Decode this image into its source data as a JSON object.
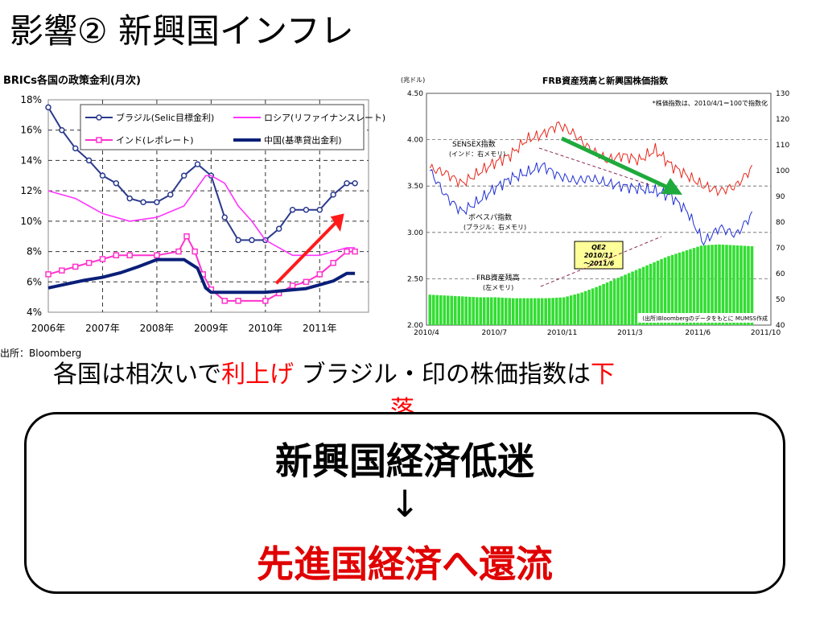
{
  "slide": {
    "title": "影響② 新興国インフレ",
    "caption_part1": "各国は相次いで",
    "caption_red1": "利上げ",
    "caption_part2": " ブラジル・印の株価指数は",
    "caption_red2a": "下",
    "caption_red2b": "落",
    "box_line1": "新興国経済低迷",
    "box_line2": "↓",
    "box_line3": "先進国経済へ還流",
    "source_left": "出所：Bloomberg"
  },
  "chart_data": [
    {
      "type": "line",
      "title": "BRICs各国の政策金利(月次)",
      "x_ticks": [
        "2006年",
        "2007年",
        "2008年",
        "2009年",
        "2010年",
        "2011年"
      ],
      "y_ticks": [
        "18%",
        "16%",
        "14%",
        "12%",
        "10%",
        "8%",
        "6%",
        "4%"
      ],
      "xlim": [
        2006,
        2011.9
      ],
      "ylim": [
        4,
        18
      ],
      "grid": true,
      "legend_position": "top",
      "colors": {
        "brazil": "#2b3a8c",
        "russia": "#ff33ff",
        "india": "#ff33cc",
        "china": "#0a1f78",
        "arrow": "#ff1a1a"
      },
      "series": [
        {
          "name": "ブラジル(Selic目標金利)",
          "key": "brazil",
          "marker": "circle",
          "x": [
            2006.0,
            2006.25,
            2006.5,
            2006.75,
            2007.0,
            2007.25,
            2007.5,
            2007.75,
            2008.0,
            2008.25,
            2008.5,
            2008.75,
            2009.0,
            2009.25,
            2009.5,
            2009.75,
            2010.0,
            2010.25,
            2010.5,
            2010.75,
            2011.0,
            2011.25,
            2011.5,
            2011.65
          ],
          "y": [
            17.5,
            16.0,
            14.8,
            14.0,
            13.0,
            12.5,
            11.5,
            11.25,
            11.25,
            11.75,
            13.0,
            13.75,
            13.0,
            10.25,
            8.75,
            8.75,
            8.75,
            9.5,
            10.75,
            10.75,
            10.75,
            11.75,
            12.5,
            12.5
          ]
        },
        {
          "name": "ロシア(リファイナンスレート)",
          "key": "russia",
          "marker": "none",
          "x": [
            2006.0,
            2006.5,
            2007.0,
            2007.5,
            2008.0,
            2008.5,
            2008.9,
            2009.0,
            2009.25,
            2009.5,
            2009.75,
            2010.0,
            2010.5,
            2011.0,
            2011.5,
            2011.65
          ],
          "y": [
            12.0,
            11.5,
            10.5,
            10.0,
            10.25,
            11.0,
            13.0,
            13.0,
            12.5,
            11.0,
            10.0,
            8.75,
            7.75,
            7.75,
            8.25,
            8.25
          ]
        },
        {
          "name": "インド(レポレート)",
          "key": "india",
          "marker": "square",
          "x": [
            2006.0,
            2006.25,
            2006.5,
            2006.75,
            2007.0,
            2007.25,
            2007.5,
            2008.0,
            2008.4,
            2008.55,
            2008.7,
            2008.85,
            2009.0,
            2009.25,
            2009.5,
            2010.0,
            2010.25,
            2010.5,
            2010.75,
            2011.0,
            2011.25,
            2011.5,
            2011.65
          ],
          "y": [
            6.5,
            6.75,
            7.0,
            7.25,
            7.5,
            7.75,
            7.75,
            7.75,
            8.0,
            9.0,
            8.0,
            6.5,
            5.5,
            4.75,
            4.75,
            4.75,
            5.25,
            5.75,
            6.0,
            6.5,
            7.25,
            8.0,
            8.0
          ]
        },
        {
          "name": "中国(基準貸出金利)",
          "key": "china",
          "marker": "none",
          "x": [
            2006.0,
            2006.33,
            2006.66,
            2007.0,
            2007.33,
            2007.66,
            2008.0,
            2008.5,
            2008.75,
            2008.9,
            2009.0,
            2009.5,
            2010.0,
            2010.75,
            2011.0,
            2011.25,
            2011.5,
            2011.65
          ],
          "y": [
            5.6,
            5.85,
            6.1,
            6.3,
            6.6,
            7.0,
            7.47,
            7.47,
            6.9,
            5.6,
            5.31,
            5.31,
            5.31,
            5.56,
            5.81,
            6.06,
            6.56,
            6.56
          ]
        }
      ]
    },
    {
      "type": "line",
      "title": "FRB資産残高と新興国株価指数",
      "unit_left": "(兆ドル)",
      "note": "*株価指数は、2010/4/1＝100で指数化",
      "source": "(出所)Bloombergのデータをもとに MUMSS作成",
      "x_ticks": [
        "2010/4",
        "2010/7",
        "2010/11",
        "2011/3",
        "2011/6",
        "2011/10"
      ],
      "y_left_ticks": [
        "4.50",
        "4.00",
        "3.50",
        "3.00",
        "2.50",
        "2.00"
      ],
      "y_right_ticks": [
        "130",
        "120",
        "110",
        "100",
        "90",
        "80",
        "70",
        "60",
        "50",
        "40"
      ],
      "ylim_left": [
        2.0,
        4.5
      ],
      "ylim_right": [
        40,
        130
      ],
      "label_sensex": "SENSEX指数",
      "label_sensex_sub": "(インド：右メモリ)",
      "label_bovespa": "ボベスパ指数",
      "label_bovespa_sub": "(ブラジル：右メモリ)",
      "label_frb": "FRB資産残高",
      "label_frb_sub": "(左メモリ)",
      "qe2_label_1": "QE2",
      "qe2_label_2": "2010/11",
      "qe2_label_3": "〜2011/6",
      "colors": {
        "sensex": "#e8261a",
        "bovespa": "#1f2fd6",
        "frb": "#33dd33",
        "green_arrow": "#1faa3c",
        "dashed_arrow": "#8a2a55"
      },
      "frb_balance": {
        "x": [
          0,
          0.05,
          0.1,
          0.15,
          0.2,
          0.25,
          0.3,
          0.35,
          0.4,
          0.45,
          0.5,
          0.55,
          0.6,
          0.65,
          0.7,
          0.75,
          0.8,
          0.85,
          0.9,
          0.95,
          1.0
        ],
        "y": [
          2.33,
          2.32,
          2.31,
          2.3,
          2.3,
          2.29,
          2.29,
          2.29,
          2.3,
          2.35,
          2.42,
          2.5,
          2.58,
          2.66,
          2.74,
          2.8,
          2.86,
          2.87,
          2.86,
          2.85,
          2.84
        ]
      },
      "sensex": {
        "x": [
          0,
          0.05,
          0.1,
          0.15,
          0.2,
          0.25,
          0.3,
          0.35,
          0.4,
          0.45,
          0.5,
          0.55,
          0.6,
          0.65,
          0.7,
          0.75,
          0.8,
          0.85,
          0.9,
          0.95,
          1.0
        ],
        "y": [
          101,
          99,
          95,
          99,
          103,
          106,
          112,
          114,
          118,
          114,
          108,
          104,
          106,
          104,
          108,
          102,
          98,
          94,
          92,
          94,
          101
        ]
      },
      "bovespa": {
        "x": [
          0,
          0.05,
          0.1,
          0.15,
          0.2,
          0.25,
          0.3,
          0.35,
          0.4,
          0.45,
          0.5,
          0.55,
          0.6,
          0.65,
          0.7,
          0.75,
          0.8,
          0.85,
          0.9,
          0.95,
          1.0
        ],
        "y": [
          100,
          90,
          84,
          88,
          93,
          97,
          99,
          102,
          98,
          96,
          97,
          95,
          94,
          93,
          92,
          90,
          84,
          72,
          78,
          75,
          83
        ]
      }
    }
  ]
}
